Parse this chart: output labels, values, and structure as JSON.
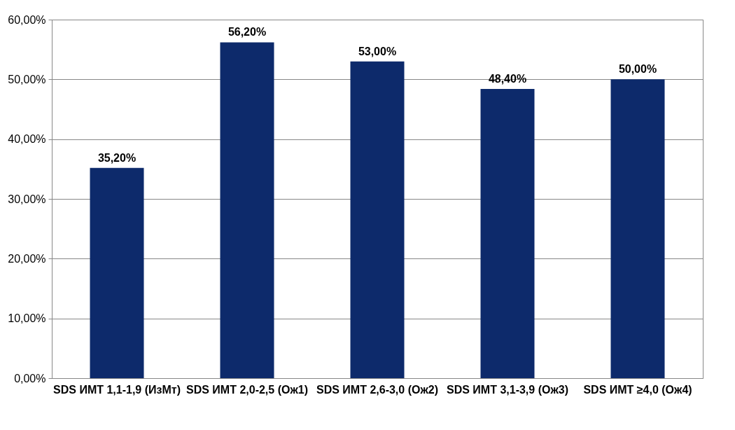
{
  "chart_data": {
    "type": "bar",
    "categories": [
      "SDS ИМТ 1,1-1,9\n(ИзМт)",
      "SDS ИМТ 2,0-2,5\n(Ож1)",
      "SDS ИМТ 2,6-3,0\n(Ож2)",
      "SDS ИМТ 3,1-3,9\n(Ож3)",
      "SDS ИМТ ≥4,0\n(Ож4)"
    ],
    "values": [
      35.2,
      56.2,
      53.0,
      48.4,
      50.0
    ],
    "value_labels": [
      "35,20%",
      "56,20%",
      "53,00%",
      "48,40%",
      "50,00%"
    ],
    "color": "#0d2a6b",
    "ylim": [
      0,
      60
    ],
    "yticks": [
      {
        "value": 0,
        "label": "0,00%"
      },
      {
        "value": 10,
        "label": "10,00%"
      },
      {
        "value": 20,
        "label": "20,00%"
      },
      {
        "value": 30,
        "label": "30,00%"
      },
      {
        "value": 40,
        "label": "40,00%"
      },
      {
        "value": 50,
        "label": "50,00%"
      },
      {
        "value": 60,
        "label": "60,00%"
      }
    ],
    "grid": "y"
  }
}
